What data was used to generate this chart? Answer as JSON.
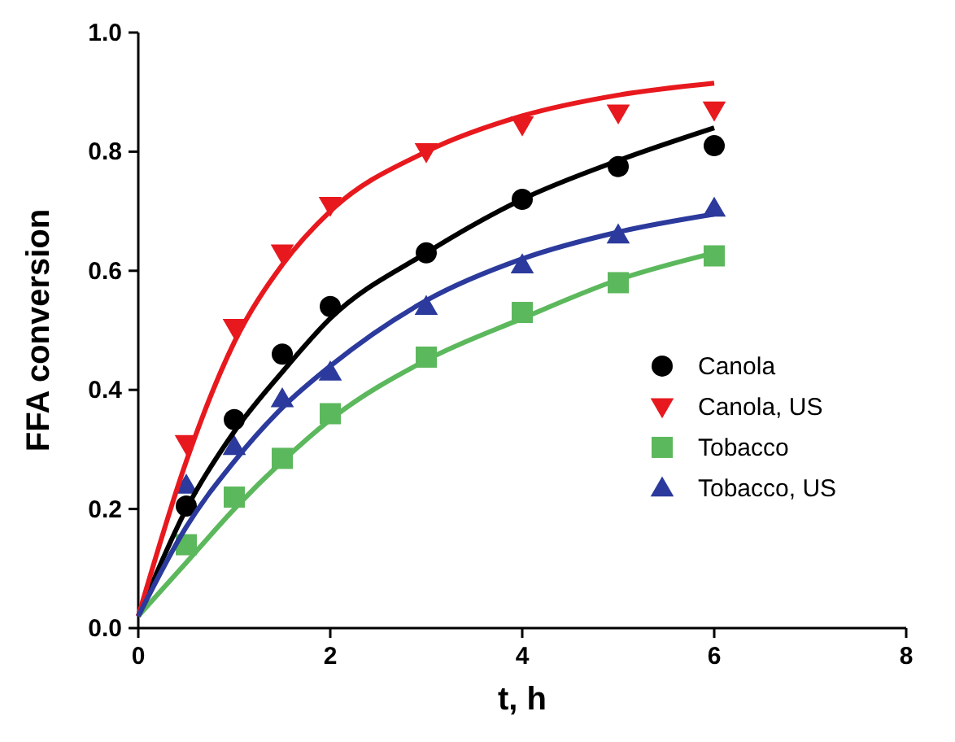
{
  "chart_data": {
    "type": "scatter",
    "xlabel": "t, h",
    "ylabel": "FFA conversion",
    "xlim": [
      0,
      8
    ],
    "ylim": [
      0,
      1
    ],
    "xticks": [
      0,
      2,
      4,
      6,
      8
    ],
    "yticks": [
      {
        "value": 0,
        "label": "0.0"
      },
      {
        "value": 0.2,
        "label": "0.2"
      },
      {
        "value": 0.4,
        "label": "0.4"
      },
      {
        "value": 0.6,
        "label": "0.6"
      },
      {
        "value": 0.8,
        "label": "0.8"
      },
      {
        "value": 1,
        "label": "1.0"
      }
    ],
    "grid": false,
    "legend": "bottom right",
    "series": [
      {
        "name": "Canola",
        "color": "#000000",
        "marker": "circle",
        "x": [
          0.5,
          1,
          1.5,
          2,
          3,
          4,
          5,
          6
        ],
        "values": [
          0.205,
          0.35,
          0.46,
          0.54,
          0.63,
          0.72,
          0.775,
          0.81
        ]
      },
      {
        "name": "Canola, US",
        "color": "#e8191e",
        "marker": "triangle-down",
        "x": [
          0.5,
          1,
          1.5,
          2,
          3,
          4,
          5,
          6
        ],
        "values": [
          0.31,
          0.505,
          0.63,
          0.71,
          0.8,
          0.845,
          0.865,
          0.87
        ]
      },
      {
        "name": "Tobacco",
        "color": "#5cb85c",
        "marker": "square",
        "x": [
          0.5,
          1,
          1.5,
          2,
          3,
          4,
          5,
          6
        ],
        "values": [
          0.14,
          0.22,
          0.285,
          0.36,
          0.455,
          0.53,
          0.58,
          0.625
        ]
      },
      {
        "name": "Tobacco, US",
        "color": "#2b3a9c",
        "marker": "triangle",
        "x": [
          0.5,
          1,
          1.5,
          2,
          3,
          4,
          5,
          6
        ],
        "values": [
          0.24,
          0.305,
          0.385,
          0.43,
          0.54,
          0.61,
          0.66,
          0.705
        ]
      },
      {
        "type": "line",
        "color": "#000000",
        "marker": "none",
        "x": [
          0,
          0.5,
          1,
          1.5,
          2,
          3,
          4,
          5,
          6
        ],
        "values": [
          0.02,
          0.2,
          0.33,
          0.43,
          0.52,
          0.63,
          0.72,
          0.785,
          0.84
        ]
      },
      {
        "type": "line",
        "color": "#e8191e",
        "marker": "none",
        "x": [
          0,
          0.5,
          1,
          1.5,
          2,
          3,
          4,
          5,
          6
        ],
        "values": [
          0.02,
          0.28,
          0.48,
          0.61,
          0.7,
          0.8,
          0.86,
          0.895,
          0.915
        ]
      },
      {
        "type": "line",
        "color": "#5cb85c",
        "marker": "none",
        "x": [
          0,
          0.5,
          1,
          1.5,
          2,
          3,
          4,
          5,
          6
        ],
        "values": [
          0.02,
          0.11,
          0.2,
          0.28,
          0.35,
          0.45,
          0.52,
          0.585,
          0.63
        ]
      },
      {
        "type": "line",
        "color": "#2b3a9c",
        "marker": "none",
        "x": [
          0,
          0.5,
          1,
          1.5,
          2,
          3,
          4,
          5,
          6
        ],
        "values": [
          0.02,
          0.17,
          0.28,
          0.37,
          0.44,
          0.55,
          0.62,
          0.665,
          0.695
        ]
      }
    ]
  }
}
